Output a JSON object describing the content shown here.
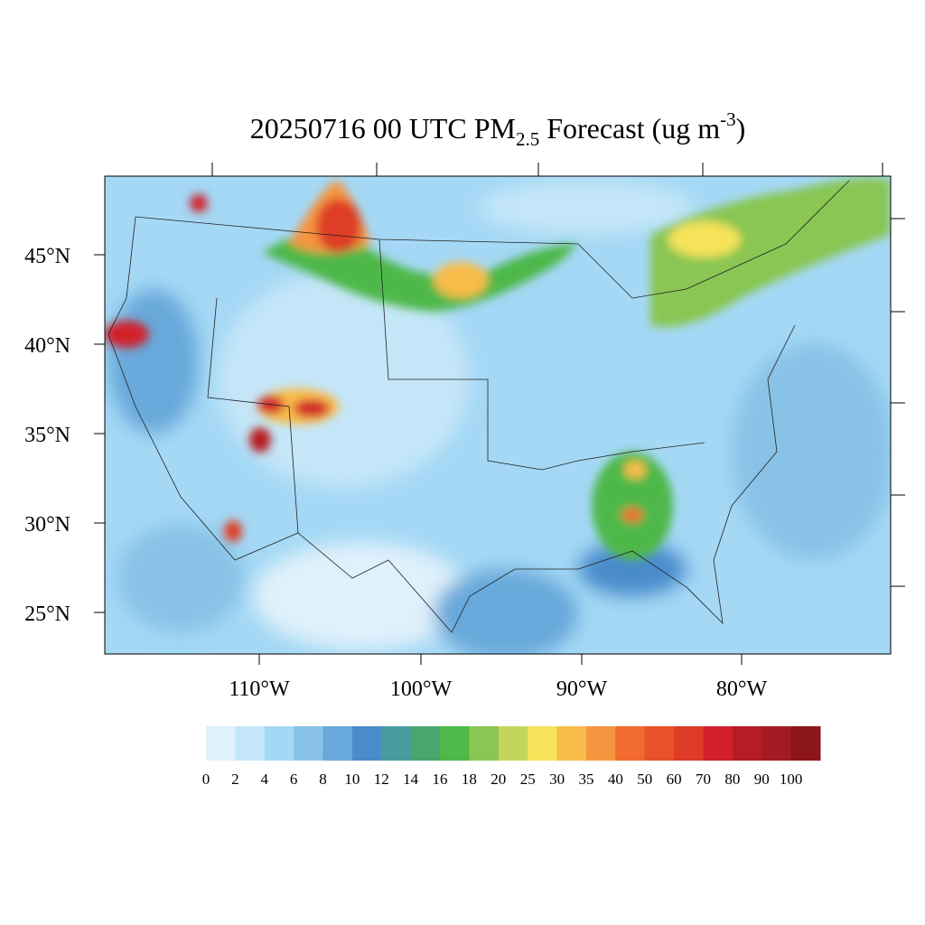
{
  "map": {
    "title": {
      "main": "20250716 00 UTC PM",
      "sub": "2.5",
      "mid": " Forecast (ug m",
      "sup": "-3",
      "end": ")"
    },
    "lat_labels": [
      "45°N",
      "40°N",
      "35°N",
      "30°N",
      "25°N"
    ],
    "lon_labels": [
      "110°W",
      "100°W",
      "90°W",
      "80°W"
    ],
    "colorbar": {
      "levels": [
        0,
        2,
        4,
        6,
        8,
        10,
        12,
        14,
        16,
        18,
        20,
        25,
        30,
        35,
        40,
        50,
        60,
        70,
        80,
        90,
        100
      ],
      "colors": [
        "#dff1fb",
        "#c4e6f8",
        "#a4d8f5",
        "#88c2e7",
        "#68a8da",
        "#4a8bcb",
        "#479c9e",
        "#49a66d",
        "#4eb84a",
        "#89c653",
        "#c3d65b",
        "#f6e35a",
        "#f8bc4a",
        "#f5953f",
        "#f06b2d",
        "#e8512a",
        "#de3c28",
        "#d1202b",
        "#b71c24",
        "#a31b22",
        "#8c161a"
      ]
    }
  }
}
